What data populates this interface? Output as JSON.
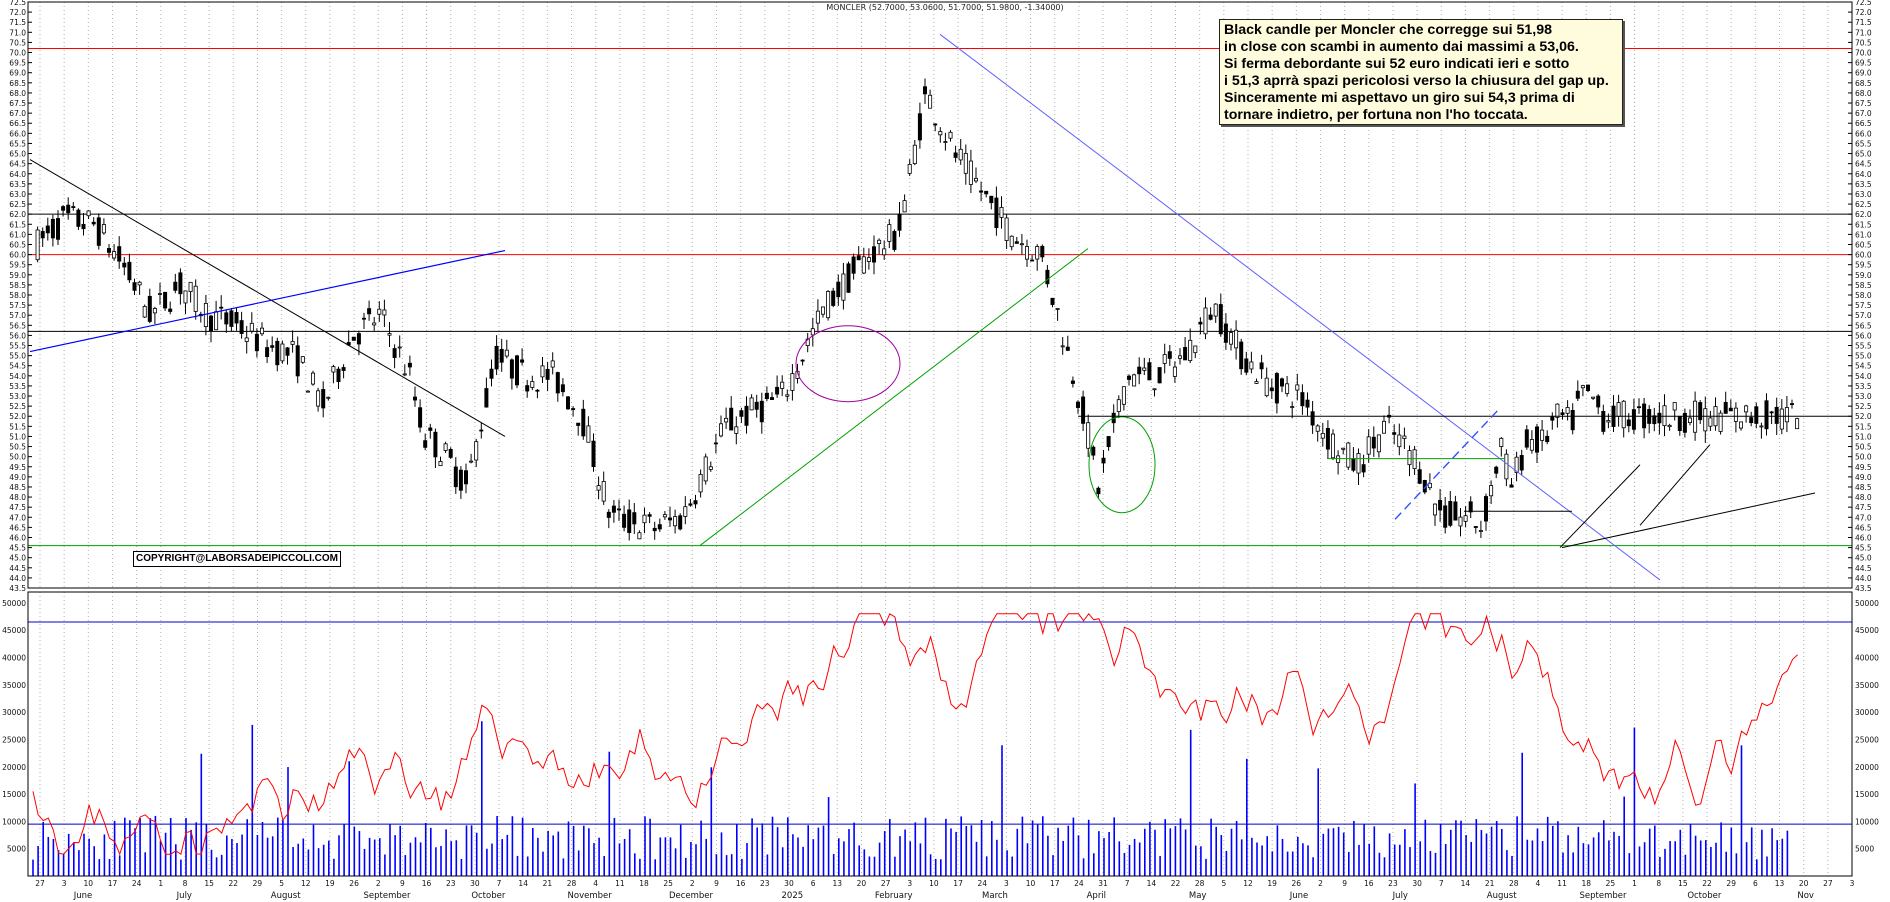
{
  "chart_data": [
    {
      "type": "candlestick",
      "title": "MONCLER (52.7000, 53.0600, 51.7000, 51.9800, -1.34000)",
      "ylim": [
        43.5,
        72.5
      ],
      "y_ticks": [
        "43.5",
        "44.0",
        "44.5",
        "45.0",
        "45.5",
        "46.0",
        "46.5",
        "47.0",
        "47.5",
        "48.0",
        "48.5",
        "49.0",
        "49.5",
        "50.0",
        "50.5",
        "51.0",
        "51.5",
        "52.0",
        "52.5",
        "53.0",
        "53.5",
        "54.0",
        "54.5",
        "55.0",
        "55.5",
        "56.0",
        "56.5",
        "57.0",
        "57.5",
        "58.0",
        "58.5",
        "59.0",
        "59.5",
        "60.0",
        "60.5",
        "61.0",
        "61.5",
        "62.0",
        "62.5",
        "63.0",
        "63.5",
        "64.0",
        "64.5",
        "65.0",
        "65.5",
        "66.0",
        "66.5",
        "67.0",
        "67.5",
        "68.0",
        "68.5",
        "69.0",
        "69.5",
        "70.0",
        "70.5",
        "71.0",
        "71.5",
        "72.0",
        "72.5"
      ],
      "x_months": [
        "June",
        "July",
        "August",
        "September",
        "October",
        "November",
        "December",
        "2025",
        "February",
        "March",
        "April",
        "May",
        "June",
        "July",
        "August",
        "September",
        "October",
        "Nov"
      ],
      "x_days": [
        "27",
        "3",
        "10",
        "17",
        "24",
        "1",
        "8",
        "15",
        "22",
        "29",
        "5",
        "12",
        "19",
        "26",
        "2",
        "9",
        "16",
        "23",
        "30",
        "7",
        "14",
        "21",
        "28",
        "4",
        "11",
        "18",
        "25",
        "2",
        "9",
        "16",
        "23",
        "30",
        "6",
        "13",
        "20",
        "27",
        "3",
        "10",
        "17",
        "24",
        "3",
        "10",
        "17",
        "24",
        "31",
        "7",
        "14",
        "22",
        "28",
        "5",
        "12",
        "19",
        "26",
        "2",
        "9",
        "16",
        "23",
        "30",
        "7",
        "14",
        "21",
        "28",
        "4",
        "11",
        "18",
        "25",
        "1",
        "8",
        "15",
        "22",
        "29",
        "6",
        "13",
        "20",
        "27",
        "3"
      ],
      "last_close": 51.98,
      "horizontal_levels": [
        {
          "value": 70.2,
          "color": "#ff0000"
        },
        {
          "value": 62.0,
          "color": "#000000"
        },
        {
          "value": 60.0,
          "color": "#ff0000"
        },
        {
          "value": 56.2,
          "color": "#000000"
        },
        {
          "value": 45.6,
          "color": "#00a000"
        }
      ],
      "grid": true
    },
    {
      "type": "bar+line",
      "ylim": [
        0,
        52000
      ],
      "y_ticks": [
        "5000",
        "10000",
        "15000",
        "20000",
        "25000",
        "30000",
        "35000",
        "40000",
        "45000",
        "50000"
      ],
      "reference_levels": [
        9500,
        46500
      ],
      "series_colors": {
        "volume": "#0000ff",
        "average": "#ff0000"
      }
    }
  ],
  "annotation": {
    "lines": [
      "Black candle per Moncler che corregge sui 51,98",
      "in close con scambi in aumento dai massimi a 53,06.",
      "Si ferma debordante sui 52 euro indicati ieri e sotto",
      "i 51,3 aprrà spazi pericolosi verso la chiusura del gap up.",
      "Sinceramente mi aspettavo un giro sui 54,3 prima di",
      "tornare indietro, per fortuna non l'ho toccata."
    ]
  },
  "copyright": "COPYRIGHT@LABORSADEIPICCOLI.COM",
  "colors": {
    "up": "#ffffff",
    "down": "#000000",
    "grid": "#999999"
  }
}
